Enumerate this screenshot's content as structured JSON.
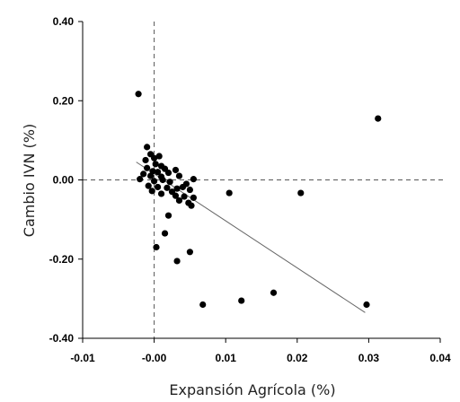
{
  "chart_data": {
    "type": "scatter",
    "xlabel": "Expansión Agrícola (%)",
    "ylabel": "Cambio IVN (%)",
    "xlim": [
      -0.01,
      0.04
    ],
    "ylim": [
      -0.4,
      0.4
    ],
    "x_ticks": [
      -0.01,
      0.0,
      0.01,
      0.02,
      0.03,
      0.04
    ],
    "y_ticks": [
      -0.4,
      -0.2,
      0.0,
      0.2,
      0.4
    ],
    "x_tick_labels": [
      "-0.01",
      "-0.00",
      "0.01",
      "0.02",
      "0.03",
      "0.04"
    ],
    "y_tick_labels": [
      "-0.40",
      "-0.20",
      "0.00",
      "0.20",
      "0.40"
    ],
    "grid": false,
    "legend": "none",
    "reference_lines": {
      "x": 0.0,
      "y": 0.0,
      "style": "dashed"
    },
    "trendline": {
      "x": [
        -0.0025,
        0.0295
      ],
      "y": [
        0.045,
        -0.335
      ]
    },
    "points": [
      {
        "x": -0.0022,
        "y": 0.217
      },
      {
        "x": 0.0313,
        "y": 0.155
      },
      {
        "x": -0.001,
        "y": 0.083
      },
      {
        "x": -0.0005,
        "y": 0.065
      },
      {
        "x": 0.0,
        "y": 0.055
      },
      {
        "x": 0.0007,
        "y": 0.06
      },
      {
        "x": -0.0012,
        "y": 0.05
      },
      {
        "x": 0.0002,
        "y": 0.04
      },
      {
        "x": 0.001,
        "y": 0.035
      },
      {
        "x": 0.0015,
        "y": 0.028
      },
      {
        "x": 0.003,
        "y": 0.025
      },
      {
        "x": -0.001,
        "y": 0.03
      },
      {
        "x": -0.0002,
        "y": 0.022
      },
      {
        "x": 0.0005,
        "y": 0.02
      },
      {
        "x": 0.002,
        "y": 0.018
      },
      {
        "x": 0.0035,
        "y": 0.01
      },
      {
        "x": -0.0015,
        "y": 0.015
      },
      {
        "x": -0.0005,
        "y": 0.01
      },
      {
        "x": 0.001,
        "y": 0.008
      },
      {
        "x": -0.002,
        "y": 0.002
      },
      {
        "x": 0.0,
        "y": -0.003
      },
      {
        "x": 0.0012,
        "y": 0.0
      },
      {
        "x": 0.0022,
        "y": -0.005
      },
      {
        "x": 0.0055,
        "y": 0.002
      },
      {
        "x": 0.0045,
        "y": -0.01
      },
      {
        "x": -0.0008,
        "y": -0.015
      },
      {
        "x": 0.0005,
        "y": -0.018
      },
      {
        "x": 0.0018,
        "y": -0.02
      },
      {
        "x": 0.0032,
        "y": -0.022
      },
      {
        "x": 0.004,
        "y": -0.018
      },
      {
        "x": 0.005,
        "y": -0.025
      },
      {
        "x": -0.0003,
        "y": -0.028
      },
      {
        "x": 0.001,
        "y": -0.035
      },
      {
        "x": 0.0025,
        "y": -0.03
      },
      {
        "x": 0.003,
        "y": -0.04
      },
      {
        "x": 0.0042,
        "y": -0.042
      },
      {
        "x": 0.0055,
        "y": -0.045
      },
      {
        "x": 0.0035,
        "y": -0.052
      },
      {
        "x": 0.0048,
        "y": -0.058
      },
      {
        "x": 0.0052,
        "y": -0.065
      },
      {
        "x": 0.0105,
        "y": -0.033
      },
      {
        "x": 0.0205,
        "y": -0.033
      },
      {
        "x": 0.002,
        "y": -0.09
      },
      {
        "x": 0.0015,
        "y": -0.135
      },
      {
        "x": 0.0003,
        "y": -0.17
      },
      {
        "x": 0.005,
        "y": -0.182
      },
      {
        "x": 0.0032,
        "y": -0.205
      },
      {
        "x": 0.0068,
        "y": -0.315
      },
      {
        "x": 0.0122,
        "y": -0.305
      },
      {
        "x": 0.0167,
        "y": -0.285
      },
      {
        "x": 0.0297,
        "y": -0.315
      }
    ]
  }
}
